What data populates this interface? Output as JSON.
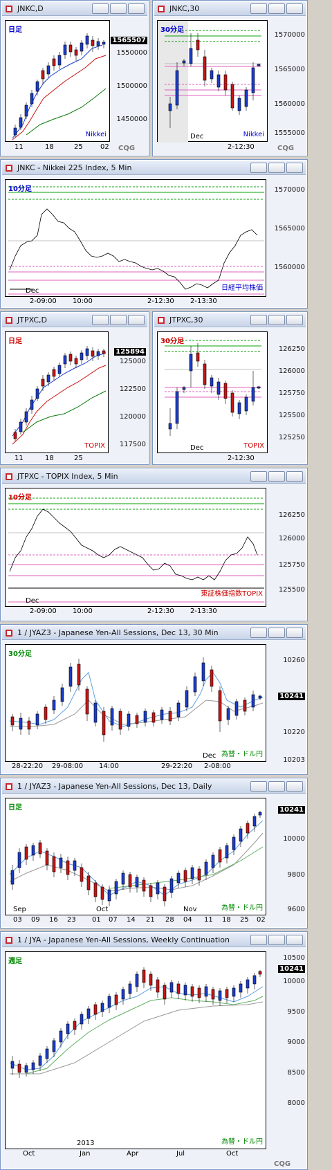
{
  "windows": [
    {
      "title": "JNKC,D",
      "period": "日足",
      "inst": "Nikkei",
      "prices": [
        "1565507",
        "1550000",
        "1500000",
        "1450000"
      ],
      "dates": [
        "11",
        "18",
        "25",
        "02"
      ],
      "cqg": "CQG"
    },
    {
      "title": "JNKC,30",
      "period": "30分足",
      "inst": "Nikkei",
      "prices": [
        "1570000",
        "1565000",
        "1560000",
        "1555000"
      ],
      "month": "Dec",
      "dates": [
        "2-12:30"
      ],
      "cqg": "CQG"
    },
    {
      "title": "JNKC - Nikkei 225 Index, 5 Min",
      "period": "10分足",
      "inst": "日経平均株価",
      "prices": [
        "1570000",
        "1565000",
        "1560000"
      ],
      "month": "Dec",
      "dates": [
        "2-09:00",
        "10:00",
        "2-12:30",
        "2-13:30"
      ]
    },
    {
      "title": "JTPXC,D",
      "period": "日足",
      "inst": "TOPIX",
      "prices": [
        "125894",
        "125000",
        "122500",
        "120000",
        "117500"
      ],
      "dates": [
        "11",
        "18",
        "25"
      ]
    },
    {
      "title": "JTPXC,30",
      "period": "30分足",
      "inst": "TOPIX",
      "prices": [
        "126250",
        "126000",
        "125750",
        "125500",
        "125250"
      ],
      "month": "Dec",
      "dates": [
        "2-12:30"
      ]
    },
    {
      "title": "JTPXC - TOPIX Index, 5 Min",
      "period": "10分足",
      "inst": "東証株価指数TOPIX",
      "prices": [
        "126250",
        "126000",
        "125750",
        "125500"
      ],
      "month": "Dec",
      "dates": [
        "2-09:00",
        "10:00",
        "2-12:30",
        "2-13:30"
      ]
    },
    {
      "title": "1 / JYAZ3 - Japanese Yen-All Sessions, Dec 13, 30 Min",
      "period": "30分足",
      "inst": "為替・ドル円",
      "prices": [
        "10260",
        "10241",
        "10220",
        "10203"
      ],
      "month": "Dec",
      "dates": [
        "28-22:20",
        "29-08:00",
        "14:00",
        "29-22:20",
        "2-08:00"
      ]
    },
    {
      "title": "1 / JYAZ3 - Japanese Yen-All Sessions, Dec 13, Daily",
      "period": "日足",
      "inst": "為替・ドル円",
      "prices": [
        "10241",
        "10000",
        "9800",
        "9600"
      ],
      "months": [
        "Sep",
        "Oct",
        "Nov"
      ],
      "dates": [
        "03",
        "09",
        "16",
        "23",
        "01",
        "07",
        "14",
        "21",
        "28",
        "04",
        "11",
        "18",
        "25",
        "02"
      ]
    },
    {
      "title": "1 / JYA - Japanese Yen-All Sessions, Weekly Continuation",
      "period": "週足",
      "inst": "為替・ドル円",
      "prices": [
        "10500",
        "10241",
        "10000",
        "9500",
        "9000",
        "8500",
        "8000"
      ],
      "year": "2013",
      "dates": [
        "Oct",
        "Jan",
        "Apr",
        "Jul",
        "Oct"
      ],
      "cqg": "CQG"
    }
  ],
  "colors": {
    "up": "#1a3ccc",
    "down": "#c81414",
    "green": "#0aa00a",
    "pink": "#e060c0",
    "blue_label": "#0000cc",
    "red_label": "#cc0000",
    "green_label": "#008800"
  }
}
